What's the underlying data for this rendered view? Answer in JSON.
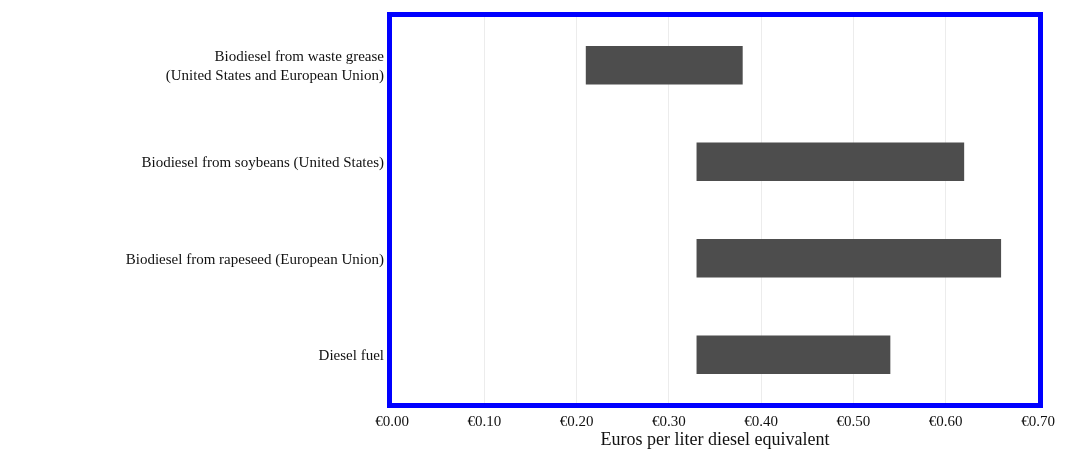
{
  "chart_data": {
    "type": "bar",
    "orientation": "horizontal",
    "xlabel": "Euros per liter diesel equivalent",
    "categories": [
      "Biodiesel from waste grease\n(United States and European Union)",
      "Biodiesel from soybeans (United States)",
      "Biodiesel from rapeseed (European Union)",
      "Diesel fuel"
    ],
    "base": [
      0.21,
      0.33,
      0.33,
      0.33
    ],
    "values": [
      0.17,
      0.29,
      0.33,
      0.21
    ],
    "color": "#4d4d4d",
    "xlim": [
      0,
      0.7
    ],
    "xticks": [
      {
        "value": 0,
        "label": "€0.00"
      },
      {
        "value": 0.1,
        "label": "€0.10"
      },
      {
        "value": 0.2,
        "label": "€0.20"
      },
      {
        "value": 0.3,
        "label": "€0.30"
      },
      {
        "value": 0.4,
        "label": "€0.40"
      },
      {
        "value": 0.5,
        "label": "€0.50"
      },
      {
        "value": 0.6,
        "label": "€0.60"
      },
      {
        "value": 0.7,
        "label": "€0.70"
      }
    ],
    "grid": "x"
  }
}
